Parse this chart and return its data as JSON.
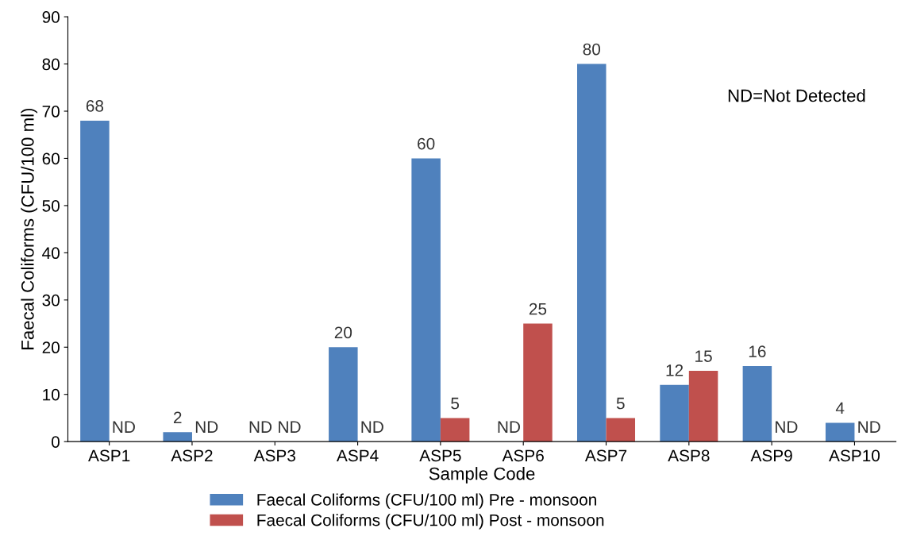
{
  "chart_data": {
    "type": "bar",
    "xlabel": "Sample Code",
    "ylabel": "Faecal Coliforms (CFU/100 ml)",
    "categories": [
      "ASP1",
      "ASP2",
      "ASP3",
      "ASP4",
      "ASP5",
      "ASP6",
      "ASP7",
      "ASP8",
      "ASP9",
      "ASP10"
    ],
    "series": [
      {
        "name": "Faecal Coliforms (CFU/100 ml) Pre - monsoon",
        "color": "#4f81bd",
        "values": [
          68,
          2,
          null,
          20,
          60,
          null,
          80,
          12,
          16,
          4
        ],
        "value_labels": [
          "68",
          "2",
          "ND",
          "20",
          "60",
          "ND",
          "80",
          "12",
          "16",
          "4"
        ]
      },
      {
        "name": "Faecal Coliforms (CFU/100 ml) Post - monsoon",
        "color": "#c0504d",
        "values": [
          null,
          null,
          null,
          null,
          5,
          25,
          5,
          15,
          null,
          null
        ],
        "value_labels": [
          "ND",
          "ND",
          "ND",
          "ND",
          "5",
          "25",
          "5",
          "15",
          "ND",
          "ND"
        ]
      }
    ],
    "ylim": [
      0,
      90
    ],
    "yticks": [
      0,
      10,
      20,
      30,
      40,
      50,
      60,
      70,
      80,
      90
    ],
    "grid": false,
    "legend": "bottom",
    "annotations": [
      "ND=Not Detected"
    ]
  }
}
